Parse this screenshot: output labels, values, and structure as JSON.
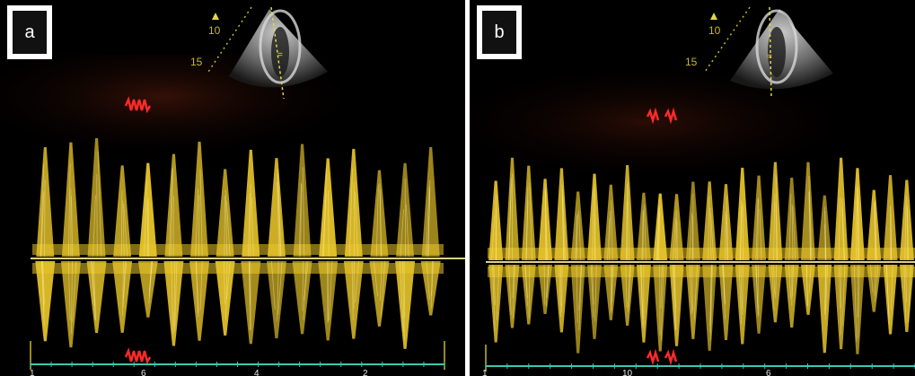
{
  "panels": [
    {
      "id": "a",
      "label": "a",
      "depth_labels": [
        "10",
        "15"
      ],
      "axis_numbers": [
        "1",
        "6",
        "4",
        "2"
      ]
    },
    {
      "id": "b",
      "label": "b",
      "depth_labels": [
        "10",
        "15"
      ],
      "axis_numbers": [
        "1",
        "10",
        "6"
      ]
    }
  ],
  "colors": {
    "background": "#000000",
    "doppler": "#e8c52a",
    "marker": "#ff2a2a",
    "axis": "#3ec7b0",
    "scale": "#c9b72a"
  }
}
